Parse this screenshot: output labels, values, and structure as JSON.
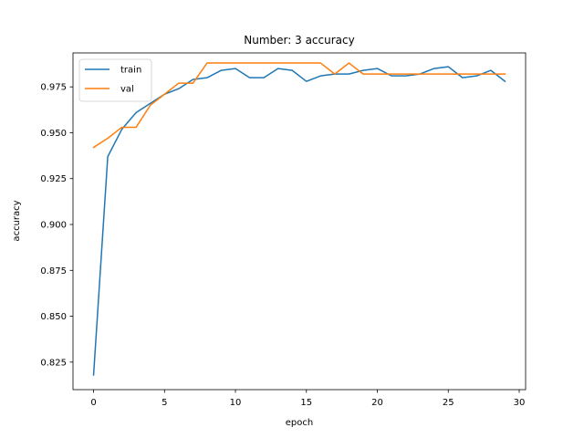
{
  "chart_data": {
    "type": "line",
    "title": "Number: 3 accuracy",
    "xlabel": "epoch",
    "ylabel": "accuracy",
    "xlim": [
      -1.45,
      30.45
    ],
    "ylim": [
      0.81,
      0.9935
    ],
    "xticks": [
      0,
      5,
      10,
      15,
      20,
      25,
      30
    ],
    "yticks": [
      0.825,
      0.85,
      0.875,
      0.9,
      0.925,
      0.95,
      0.975
    ],
    "ytick_labels": [
      "0.825",
      "0.850",
      "0.875",
      "0.900",
      "0.925",
      "0.950",
      "0.975"
    ],
    "grid": false,
    "legend_position": "top-left",
    "x": [
      0,
      1,
      2,
      3,
      4,
      5,
      6,
      7,
      8,
      9,
      10,
      11,
      12,
      13,
      14,
      15,
      16,
      17,
      18,
      19,
      20,
      21,
      22,
      23,
      24,
      25,
      26,
      27,
      28,
      29
    ],
    "series": [
      {
        "name": "train",
        "color": "#1f77b4",
        "values": [
          0.818,
          0.937,
          0.952,
          0.961,
          0.966,
          0.971,
          0.974,
          0.979,
          0.98,
          0.984,
          0.985,
          0.98,
          0.98,
          0.985,
          0.984,
          0.978,
          0.981,
          0.982,
          0.982,
          0.984,
          0.985,
          0.981,
          0.981,
          0.982,
          0.985,
          0.986,
          0.98,
          0.981,
          0.984,
          0.978
        ]
      },
      {
        "name": "val",
        "color": "#ff7f0e",
        "values": [
          0.942,
          0.947,
          0.953,
          0.953,
          0.965,
          0.971,
          0.977,
          0.977,
          0.988,
          0.988,
          0.988,
          0.988,
          0.988,
          0.988,
          0.988,
          0.988,
          0.988,
          0.982,
          0.988,
          0.982,
          0.982,
          0.982,
          0.982,
          0.982,
          0.982,
          0.982,
          0.982,
          0.982,
          0.982,
          0.982
        ]
      }
    ]
  }
}
